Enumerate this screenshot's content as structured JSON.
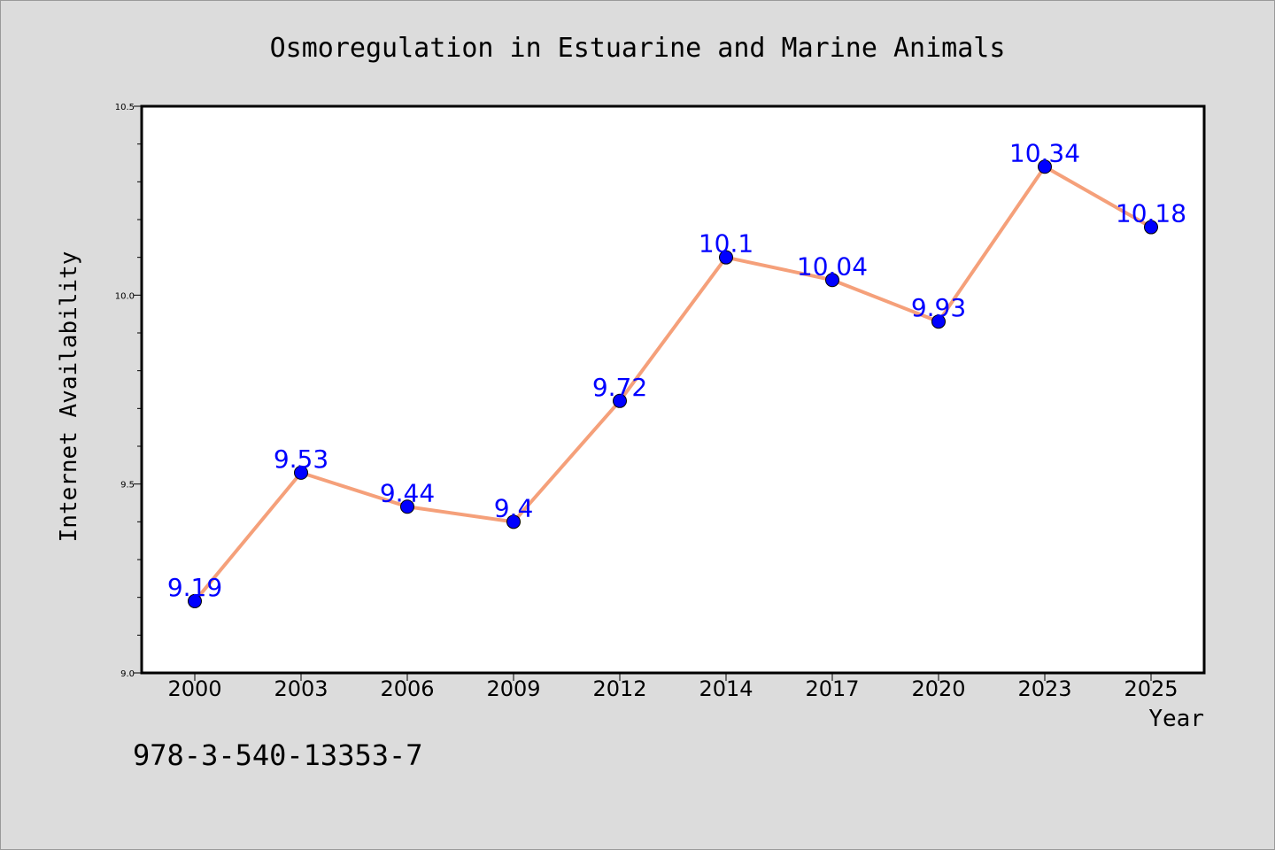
{
  "chart_data": {
    "type": "line",
    "title": "Osmoregulation in Estuarine and Marine Animals",
    "xlabel": "Year",
    "ylabel": "Internet Availability",
    "categories": [
      "2000",
      "2003",
      "2006",
      "2009",
      "2012",
      "2014",
      "2017",
      "2020",
      "2023",
      "2025"
    ],
    "series": [
      {
        "values": [
          9.19,
          9.53,
          9.44,
          9.4,
          9.72,
          10.1,
          10.04,
          9.93,
          10.34,
          10.18
        ],
        "labels": [
          "9.19",
          "9.53",
          "9.44",
          "9.4",
          "9.72",
          "10.1",
          "10.04",
          "9.93",
          "10.34",
          "10.18"
        ],
        "line_color": "#f5a07a",
        "marker_color": "#0000ff",
        "label_color": "#0000ff"
      }
    ],
    "ylim": [
      9.0,
      10.5
    ],
    "yticks": [
      "9.0",
      "9.5",
      "10.0",
      "10.5"
    ],
    "grid": false,
    "legend": "none"
  },
  "footer": {
    "text": "978-3-540-13353-7"
  },
  "colors": {
    "background": "#dcdcdc",
    "plot_background": "#ffffff"
  }
}
